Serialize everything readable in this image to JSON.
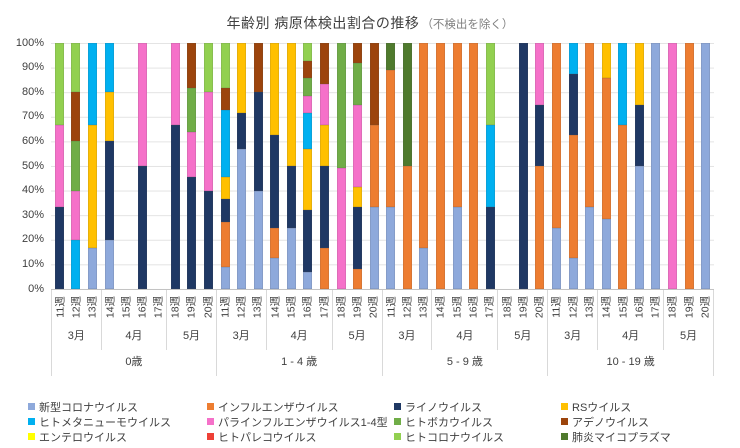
{
  "title": {
    "main": "年齢別 病原体検出割合の推移",
    "note": "（不検出を除く）"
  },
  "chart_data": {
    "type": "bar",
    "subtype": "stacked-100pct-column",
    "title": "年齢別 病原体検出割合の推移（不検出を除く）",
    "ylim": [
      0,
      100
    ],
    "grid": true,
    "legend_position": "bottom",
    "y_ticks": [
      "0%",
      "10%",
      "20%",
      "30%",
      "40%",
      "50%",
      "60%",
      "70%",
      "80%",
      "90%",
      "100%"
    ],
    "weeks": [
      "11週",
      "12週",
      "13週",
      "14週",
      "15週",
      "16週",
      "17週",
      "18週",
      "19週",
      "20週"
    ],
    "months": [
      {
        "label": "3月",
        "weeks": 3
      },
      {
        "label": "4月",
        "weeks": 4
      },
      {
        "label": "5月",
        "weeks": 3
      }
    ],
    "series": [
      {
        "name": "新型コロナウイルス",
        "color": "#8EA9DB"
      },
      {
        "name": "インフルエンザウイルス",
        "color": "#ED7D31"
      },
      {
        "name": "ライノウイルス",
        "color": "#1F3864"
      },
      {
        "name": "RSウイルス",
        "color": "#FFC000"
      },
      {
        "name": "ヒトメタニューモウイルス",
        "color": "#00B0F0"
      },
      {
        "name": "パラインフルエンザウイルス1-4型",
        "color": "#F571C9"
      },
      {
        "name": "ヒトボカウイルス",
        "color": "#70AD47"
      },
      {
        "name": "アデノウイルス",
        "color": "#9C440C"
      },
      {
        "name": "エンテロウイルス",
        "color": "#FFFF00"
      },
      {
        "name": "ヒトパレコウイルス",
        "color": "#EE4036"
      },
      {
        "name": "ヒトコロナウイルス",
        "color": "#92D050"
      },
      {
        "name": "肺炎マイコプラズマ",
        "color": "#4F7A2D"
      }
    ],
    "groups": [
      {
        "age": "0歳",
        "bars": [
          {
            "week": "11週",
            "segments": [
              [
                "ライノウイルス",
                33.3
              ],
              [
                "パラインフルエンザウイルス1-4型",
                33.4
              ],
              [
                "ヒトコロナウイルス",
                33.3
              ]
            ]
          },
          {
            "week": "12週",
            "segments": [
              [
                "ヒトメタニューモウイルス",
                20
              ],
              [
                "パラインフルエンザウイルス1-4型",
                20
              ],
              [
                "ヒトボカウイルス",
                20
              ],
              [
                "アデノウイルス",
                20
              ],
              [
                "ヒトコロナウイルス",
                20
              ]
            ]
          },
          {
            "week": "13週",
            "segments": [
              [
                "新型コロナウイルス",
                16.7
              ],
              [
                "RSウイルス",
                50
              ],
              [
                "ヒトメタニューモウイルス",
                33.3
              ]
            ]
          },
          {
            "week": "14週",
            "segments": [
              [
                "新型コロナウイルス",
                20
              ],
              [
                "ライノウイルス",
                40
              ],
              [
                "RSウイルス",
                20
              ],
              [
                "ヒトメタニューモウイルス",
                20
              ]
            ]
          },
          {
            "week": "15週",
            "segments": []
          },
          {
            "week": "16週",
            "segments": [
              [
                "ライノウイルス",
                50
              ],
              [
                "パラインフルエンザウイルス1-4型",
                50
              ]
            ]
          },
          {
            "week": "17週",
            "segments": []
          },
          {
            "week": "18週",
            "segments": [
              [
                "ライノウイルス",
                66.7
              ],
              [
                "パラインフルエンザウイルス1-4型",
                33.3
              ]
            ]
          },
          {
            "week": "19週",
            "segments": [
              [
                "ライノウイルス",
                45.5
              ],
              [
                "パラインフルエンザウイルス1-4型",
                18.2
              ],
              [
                "ヒトボカウイルス",
                18.2
              ],
              [
                "アデノウイルス",
                18.1
              ]
            ]
          },
          {
            "week": "20週",
            "segments": [
              [
                "ライノウイルス",
                40
              ],
              [
                "パラインフルエンザウイルス1-4型",
                40
              ],
              [
                "ヒトコロナウイルス",
                20
              ]
            ]
          }
        ]
      },
      {
        "age": "1 - 4 歳",
        "bars": [
          {
            "week": "11週",
            "segments": [
              [
                "新型コロナウイルス",
                9.1
              ],
              [
                "インフルエンザウイルス",
                18.2
              ],
              [
                "ライノウイルス",
                9.1
              ],
              [
                "RSウイルス",
                9.1
              ],
              [
                "ヒトメタニューモウイルス",
                27.3
              ],
              [
                "アデノウイルス",
                9.1
              ],
              [
                "ヒトコロナウイルス",
                18.1
              ]
            ]
          },
          {
            "week": "12週",
            "segments": [
              [
                "新型コロナウイルス",
                57.1
              ],
              [
                "ライノウイルス",
                14.3
              ],
              [
                "RSウイルス",
                28.6
              ]
            ]
          },
          {
            "week": "13週",
            "segments": [
              [
                "新型コロナウイルス",
                40
              ],
              [
                "ライノウイルス",
                40
              ],
              [
                "アデノウイルス",
                20
              ]
            ]
          },
          {
            "week": "14週",
            "segments": [
              [
                "新型コロナウイルス",
                12.5
              ],
              [
                "インフルエンザウイルス",
                12.5
              ],
              [
                "ライノウイルス",
                37.5
              ],
              [
                "RSウイルス",
                37.5
              ]
            ]
          },
          {
            "week": "15週",
            "segments": [
              [
                "新型コロナウイルス",
                25
              ],
              [
                "ライノウイルス",
                25
              ],
              [
                "RSウイルス",
                50
              ]
            ]
          },
          {
            "week": "16週",
            "segments": [
              [
                "新型コロナウイルス",
                7.1
              ],
              [
                "ライノウイルス",
                25
              ],
              [
                "RSウイルス",
                25
              ],
              [
                "ヒトメタニューモウイルス",
                14.3
              ],
              [
                "パラインフルエンザウイルス1-4型",
                7.2
              ],
              [
                "ヒトボカウイルス",
                7.1
              ],
              [
                "アデノウイルス",
                7.1
              ],
              [
                "ヒトコロナウイルス",
                7.2
              ]
            ]
          },
          {
            "week": "17週",
            "segments": [
              [
                "インフルエンザウイルス",
                16.7
              ],
              [
                "ライノウイルス",
                33.3
              ],
              [
                "RSウイルス",
                16.7
              ],
              [
                "パラインフルエンザウイルス1-4型",
                16.7
              ],
              [
                "アデノウイルス",
                16.6
              ]
            ]
          },
          {
            "week": "18週",
            "segments": [
              [
                "パラインフルエンザウイルス1-4型",
                49
              ],
              [
                "ヒトボカウイルス",
                51
              ]
            ]
          },
          {
            "week": "19週",
            "segments": [
              [
                "インフルエンザウイルス",
                8.3
              ],
              [
                "ライノウイルス",
                25
              ],
              [
                "RSウイルス",
                8.3
              ],
              [
                "パラインフルエンザウイルス1-4型",
                33.4
              ],
              [
                "ヒトボカウイルス",
                16.7
              ],
              [
                "アデノウイルス",
                8.3
              ]
            ]
          },
          {
            "week": "20週",
            "segments": [
              [
                "新型コロナウイルス",
                33.3
              ],
              [
                "インフルエンザウイルス",
                33.3
              ],
              [
                "アデノウイルス",
                33.4
              ]
            ]
          }
        ]
      },
      {
        "age": "5 - 9 歳",
        "bars": [
          {
            "week": "11週",
            "segments": [
              [
                "新型コロナウイルス",
                33.3
              ],
              [
                "インフルエンザウイルス",
                55.6
              ],
              [
                "肺炎マイコプラズマ",
                11.1
              ]
            ]
          },
          {
            "week": "12週",
            "segments": [
              [
                "インフルエンザウイルス",
                50
              ],
              [
                "肺炎マイコプラズマ",
                50
              ]
            ]
          },
          {
            "week": "13週",
            "segments": [
              [
                "新型コロナウイルス",
                16.7
              ],
              [
                "インフルエンザウイルス",
                83.3
              ]
            ]
          },
          {
            "week": "14週",
            "segments": [
              [
                "インフルエンザウイルス",
                100
              ]
            ]
          },
          {
            "week": "15週",
            "segments": [
              [
                "新型コロナウイルス",
                33.3
              ],
              [
                "インフルエンザウイルス",
                66.7
              ]
            ]
          },
          {
            "week": "16週",
            "segments": [
              [
                "インフルエンザウイルス",
                100
              ]
            ]
          },
          {
            "week": "17週",
            "segments": [
              [
                "ライノウイルス",
                33.3
              ],
              [
                "ヒトメタニューモウイルス",
                33.3
              ],
              [
                "ヒトコロナウイルス",
                33.4
              ]
            ]
          },
          {
            "week": "18週",
            "segments": []
          },
          {
            "week": "19週",
            "segments": [
              [
                "ライノウイルス",
                100
              ]
            ]
          },
          {
            "week": "20週",
            "segments": [
              [
                "インフルエンザウイルス",
                50
              ],
              [
                "ライノウイルス",
                25
              ],
              [
                "パラインフルエンザウイルス1-4型",
                25
              ]
            ]
          }
        ]
      },
      {
        "age": "10 - 19 歳",
        "bars": [
          {
            "week": "11週",
            "segments": [
              [
                "新型コロナウイルス",
                25
              ],
              [
                "インフルエンザウイルス",
                75
              ]
            ]
          },
          {
            "week": "12週",
            "segments": [
              [
                "新型コロナウイルス",
                12.5
              ],
              [
                "インフルエンザウイルス",
                50
              ],
              [
                "ライノウイルス",
                25
              ],
              [
                "ヒトメタニューモウイルス",
                12.5
              ]
            ]
          },
          {
            "week": "13週",
            "segments": [
              [
                "新型コロナウイルス",
                33.3
              ],
              [
                "インフルエンザウイルス",
                66.7
              ]
            ]
          },
          {
            "week": "14週",
            "segments": [
              [
                "新型コロナウイルス",
                28.6
              ],
              [
                "インフルエンザウイルス",
                57.1
              ],
              [
                "RSウイルス",
                14.3
              ]
            ]
          },
          {
            "week": "15週",
            "segments": [
              [
                "インフルエンザウイルス",
                66.7
              ],
              [
                "ヒトメタニューモウイルス",
                33.3
              ]
            ]
          },
          {
            "week": "16週",
            "segments": [
              [
                "新型コロナウイルス",
                50
              ],
              [
                "ライノウイルス",
                25
              ],
              [
                "RSウイルス",
                25
              ]
            ]
          },
          {
            "week": "17週",
            "segments": [
              [
                "新型コロナウイルス",
                100
              ]
            ]
          },
          {
            "week": "18週",
            "segments": [
              [
                "パラインフルエンザウイルス1-4型",
                100
              ]
            ]
          },
          {
            "week": "19週",
            "segments": [
              [
                "インフルエンザウイルス",
                100
              ]
            ]
          },
          {
            "week": "20週",
            "segments": [
              [
                "新型コロナウイルス",
                100
              ]
            ]
          }
        ]
      }
    ]
  }
}
